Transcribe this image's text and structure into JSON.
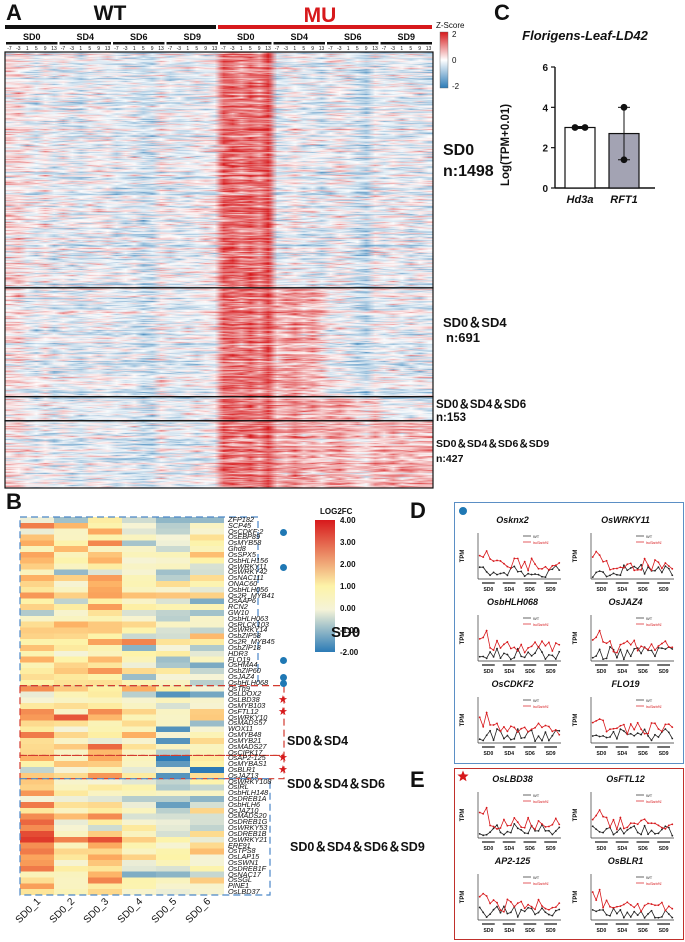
{
  "panels": {
    "A": {
      "letter": "A",
      "group_wt": "WT",
      "group_mu": "MU",
      "conditions": [
        "SD0",
        "SD4",
        "SD6",
        "SD9"
      ],
      "timepoints": [
        "-7",
        "-3",
        "1",
        "5",
        "9",
        "13"
      ],
      "legend": {
        "title": "Z-Score",
        "max": "2",
        "mid": "0",
        "min": "-2"
      },
      "clusters": [
        {
          "name": "SD0",
          "n": "n:1498",
          "rows": 1498
        },
        {
          "name": "SD0＆SD4",
          "n": "n:691",
          "rows": 691
        },
        {
          "name": "SD0＆SD4＆SD6",
          "n": "n:153",
          "rows": 153
        },
        {
          "name": "SD0＆SD4＆SD6＆SD9",
          "n": "n:427",
          "rows": 427
        }
      ]
    },
    "B": {
      "letter": "B",
      "legend": {
        "title": "LOG2FC",
        "ticks": [
          "4.00",
          "3.00",
          "2.00",
          "1.00",
          "0.00",
          "-1.00",
          "-2.00"
        ]
      },
      "columns": [
        "SD0_1",
        "SD0_2",
        "SD0_3",
        "SD0_4",
        "SD0_5",
        "SD0_6"
      ],
      "groups": [
        {
          "name": "SD0",
          "genes": [
            "ZFP182",
            "SCP45",
            "OsCDKF;2",
            "OsEBP89",
            "OsMYB58",
            "Ghd8",
            "OsSPX5",
            "OsbHLH156",
            "OsWRKY11",
            "OsWRKY42",
            "OsNAC111",
            "ONAC60",
            "OsbHLH056",
            "Os2R_MYB41",
            "OsAAP6",
            "RCN2",
            "GW10",
            "OsbHLH063",
            "OsRLCK103",
            "OsWRKY14",
            "OsbZIP58",
            "Os2R_MYB45",
            "OsbZIP18",
            "HDR3",
            "FLO19",
            "OsHMA4",
            "OsbZIP60",
            "OsJAZ4",
            "OsbHLH068"
          ]
        },
        {
          "name": "SD0＆SD4",
          "genes": [
            "OsTh9",
            "OsLDOX2",
            "OsLBD38",
            "OsMYB103",
            "OsFTL12",
            "OsWRKY10",
            "OsMADS57",
            "WOX11",
            "OsMYB48",
            "OsMYB21",
            "OsMADS27",
            "OsCIPK17"
          ]
        },
        {
          "name": "SD0＆SD4＆SD6",
          "genes": [
            "OsAP2-125",
            "OsMYBAS1",
            "OsBLR1",
            "OsJAZ13"
          ]
        },
        {
          "name": "SD0＆SD4＆SD6＆SD9",
          "genes": [
            "OsWRKY108",
            "OsIRL",
            "OsbHLH148",
            "OsDREB1A",
            "OsbHLH6",
            "OsJAZ10",
            "OsMADS20",
            "OsDREB1G",
            "OsWRKY53",
            "OsDREB1B",
            "OsWRKY21",
            "ERF91",
            "OsTPS8",
            "OsLAP15",
            "OsSWN1",
            "OsDREB1F",
            "OsNAC17",
            "OsSGL",
            "PINE1",
            "OsLBD37"
          ]
        }
      ],
      "dot_genes": [
        "OsCDKF;2",
        "OsWRKY11",
        "FLO19",
        "OsJAZ4",
        "OsbHLH068"
      ],
      "star_genes": [
        "OsLBD38",
        "OsFTL12",
        "OsAP2-125",
        "OsBLR1"
      ]
    },
    "C": {
      "letter": "C",
      "title": "Florigens-Leaf-LD42",
      "ylabel": "Log(TPM+0.01)"
    },
    "D": {
      "letter": "D",
      "plots": [
        {
          "title": "Osknx2"
        },
        {
          "title": "OsWRKY11"
        },
        {
          "title": "OsbHLH068"
        },
        {
          "title": "OsJAZ4"
        },
        {
          "title": "OsCDKF2"
        },
        {
          "title": "FLO19"
        }
      ]
    },
    "E": {
      "letter": "E",
      "plots": [
        {
          "title": "OsLBD38"
        },
        {
          "title": "OsFTL12"
        },
        {
          "title": "AP2-125"
        },
        {
          "title": "OsBLR1"
        }
      ]
    },
    "mini_plot": {
      "ylabel": "TPM",
      "legend_wt": "WT",
      "legend_mu": "hd3a/rft1",
      "x_groups": [
        "SD0",
        "SD4",
        "SD6",
        "SD9"
      ]
    }
  },
  "chart_data": [
    {
      "type": "bar",
      "title": "Florigens-Leaf-LD42",
      "categories": [
        "Hd3a",
        "RFT1"
      ],
      "values": [
        3.0,
        2.7
      ],
      "error": [
        0.05,
        1.3
      ],
      "points": [
        [
          3.0,
          3.0
        ],
        [
          4.0,
          1.4
        ]
      ],
      "ylabel": "Log(TPM+0.01)",
      "xlabel": "",
      "ylim": [
        0,
        6
      ],
      "yticks": [
        "0",
        "2",
        "4",
        "6"
      ],
      "colors": [
        "#ffffff",
        "#a3a3b3"
      ]
    }
  ],
  "colors": {
    "red": "#d7191c",
    "blue": "#2c7bb6",
    "dash_blue": "#4a86c8",
    "dash_red": "#d33a2f",
    "dot": "#1f78b4"
  }
}
